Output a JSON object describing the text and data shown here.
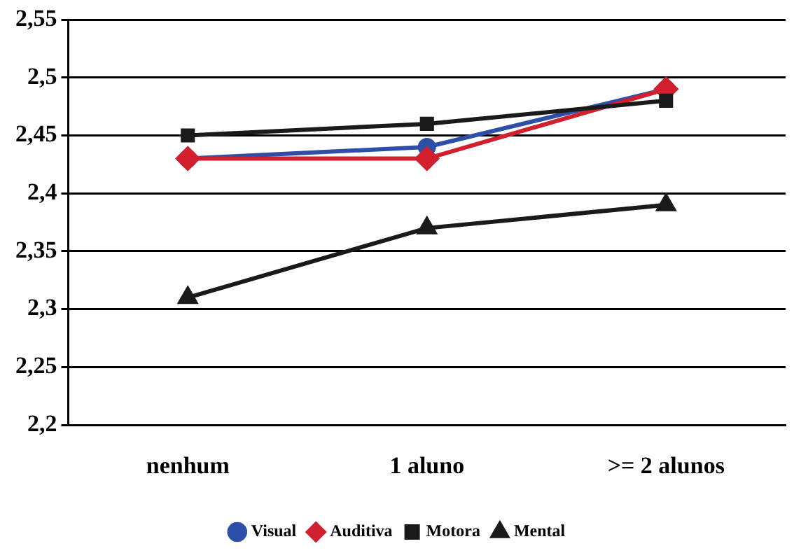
{
  "chart_data": {
    "type": "line",
    "categories": [
      "nenhum",
      "1 aluno",
      ">= 2 alunos"
    ],
    "series": [
      {
        "name": "Visual",
        "color": "#2e4fa8",
        "marker": "circle",
        "values": [
          2.43,
          2.44,
          2.49
        ]
      },
      {
        "name": "Auditiva",
        "color": "#d0202e",
        "marker": "diamond",
        "values": [
          2.43,
          2.43,
          2.49
        ]
      },
      {
        "name": "Motora",
        "color": "#1a1a1a",
        "marker": "square",
        "values": [
          2.45,
          2.46,
          2.48
        ]
      },
      {
        "name": "Mental",
        "color": "#1a1a1a",
        "marker": "triangle",
        "values": [
          2.31,
          2.37,
          2.39
        ]
      }
    ],
    "ylim": [
      2.2,
      2.55
    ],
    "yticks": [
      {
        "value": 2.2,
        "label": "2,2"
      },
      {
        "value": 2.25,
        "label": "2,25"
      },
      {
        "value": 2.3,
        "label": "2,3"
      },
      {
        "value": 2.35,
        "label": "2,35"
      },
      {
        "value": 2.4,
        "label": "2,4"
      },
      {
        "value": 2.45,
        "label": "2,45"
      },
      {
        "value": 2.5,
        "label": "2,5"
      },
      {
        "value": 2.55,
        "label": "2,55"
      }
    ],
    "grid": "y",
    "legend": "bottom"
  }
}
